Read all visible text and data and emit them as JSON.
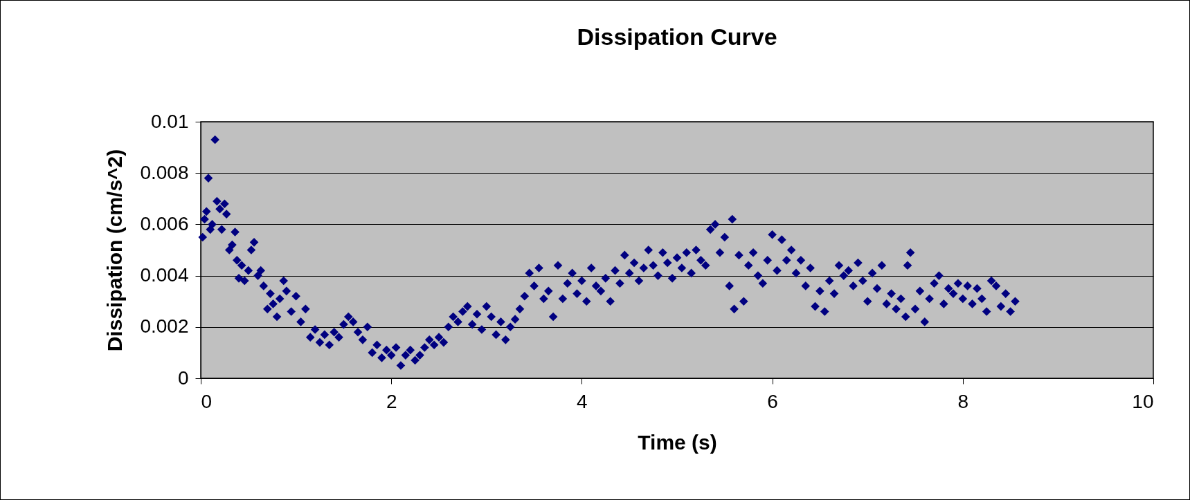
{
  "chart_data": {
    "type": "scatter",
    "title": "Dissipation Curve",
    "xlabel": "Time (s)",
    "ylabel": "Dissipation (cm/s^2)",
    "xlim": [
      0,
      10
    ],
    "xticks": [
      0,
      2,
      4,
      6,
      8,
      10
    ],
    "ylim": [
      0,
      0.01
    ],
    "yticks": [
      0,
      0.002,
      0.004,
      0.006,
      0.008,
      0.01
    ],
    "grid": "y",
    "marker": "diamond",
    "color": "#000080",
    "x": [
      0.02,
      0.04,
      0.06,
      0.08,
      0.1,
      0.12,
      0.15,
      0.17,
      0.2,
      0.22,
      0.25,
      0.27,
      0.3,
      0.33,
      0.36,
      0.38,
      0.4,
      0.43,
      0.46,
      0.5,
      0.53,
      0.56,
      0.6,
      0.63,
      0.66,
      0.7,
      0.73,
      0.76,
      0.8,
      0.83,
      0.87,
      0.9,
      0.95,
      1.0,
      1.05,
      1.1,
      1.15,
      1.2,
      1.25,
      1.3,
      1.35,
      1.4,
      1.45,
      1.5,
      1.55,
      1.6,
      1.65,
      1.7,
      1.75,
      1.8,
      1.85,
      1.9,
      1.95,
      2.0,
      2.05,
      2.1,
      2.15,
      2.2,
      2.25,
      2.3,
      2.35,
      2.4,
      2.45,
      2.5,
      2.55,
      2.6,
      2.65,
      2.7,
      2.75,
      2.8,
      2.85,
      2.9,
      2.95,
      3.0,
      3.05,
      3.1,
      3.15,
      3.2,
      3.25,
      3.3,
      3.35,
      3.4,
      3.45,
      3.5,
      3.55,
      3.6,
      3.65,
      3.7,
      3.75,
      3.8,
      3.85,
      3.9,
      3.95,
      4.0,
      4.05,
      4.1,
      4.15,
      4.2,
      4.25,
      4.3,
      4.35,
      4.4,
      4.45,
      4.5,
      4.55,
      4.6,
      4.65,
      4.7,
      4.75,
      4.8,
      4.85,
      4.9,
      4.95,
      5.0,
      5.05,
      5.1,
      5.15,
      5.2,
      5.25,
      5.3,
      5.35,
      5.4,
      5.45,
      5.5,
      5.55,
      5.58,
      5.6,
      5.65,
      5.7,
      5.75,
      5.8,
      5.85,
      5.9,
      5.95,
      6.0,
      6.05,
      6.1,
      6.15,
      6.2,
      6.25,
      6.3,
      6.35,
      6.4,
      6.45,
      6.5,
      6.55,
      6.6,
      6.65,
      6.7,
      6.75,
      6.8,
      6.85,
      6.9,
      6.95,
      7.0,
      7.05,
      7.1,
      7.15,
      7.2,
      7.25,
      7.3,
      7.35,
      7.4,
      7.42,
      7.45,
      7.5,
      7.55,
      7.6,
      7.65,
      7.7,
      7.75,
      7.8,
      7.85,
      7.9,
      7.95,
      8.0,
      8.05,
      8.1,
      8.15,
      8.2,
      8.25,
      8.3,
      8.35,
      8.4,
      8.45,
      8.5,
      8.55
    ],
    "values": [
      0.0055,
      0.0062,
      0.0065,
      0.0078,
      0.0058,
      0.006,
      0.0093,
      0.0069,
      0.0066,
      0.0058,
      0.0068,
      0.0064,
      0.005,
      0.0052,
      0.0057,
      0.0046,
      0.0039,
      0.0044,
      0.0038,
      0.0042,
      0.005,
      0.0053,
      0.004,
      0.0042,
      0.0036,
      0.0027,
      0.0033,
      0.0029,
      0.0024,
      0.0031,
      0.0038,
      0.0034,
      0.0026,
      0.0032,
      0.0022,
      0.0027,
      0.0016,
      0.0019,
      0.0014,
      0.0017,
      0.0013,
      0.0018,
      0.0016,
      0.0021,
      0.0024,
      0.0022,
      0.0018,
      0.0015,
      0.002,
      0.001,
      0.0013,
      0.0008,
      0.0011,
      0.0009,
      0.0012,
      0.0005,
      0.0009,
      0.0011,
      0.0007,
      0.0009,
      0.0012,
      0.0015,
      0.0013,
      0.0016,
      0.0014,
      0.002,
      0.0024,
      0.0022,
      0.0026,
      0.0028,
      0.0021,
      0.0025,
      0.0019,
      0.0028,
      0.0024,
      0.0017,
      0.0022,
      0.0015,
      0.002,
      0.0023,
      0.0027,
      0.0032,
      0.0041,
      0.0036,
      0.0043,
      0.0031,
      0.0034,
      0.0024,
      0.0044,
      0.0031,
      0.0037,
      0.0041,
      0.0033,
      0.0038,
      0.003,
      0.0043,
      0.0036,
      0.0034,
      0.0039,
      0.003,
      0.0042,
      0.0037,
      0.0048,
      0.0041,
      0.0045,
      0.0038,
      0.0043,
      0.005,
      0.0044,
      0.004,
      0.0049,
      0.0045,
      0.0039,
      0.0047,
      0.0043,
      0.0049,
      0.0041,
      0.005,
      0.0046,
      0.0044,
      0.0058,
      0.006,
      0.0049,
      0.0055,
      0.0036,
      0.0062,
      0.0027,
      0.0048,
      0.003,
      0.0044,
      0.0049,
      0.004,
      0.0037,
      0.0046,
      0.0056,
      0.0042,
      0.0054,
      0.0046,
      0.005,
      0.0041,
      0.0046,
      0.0036,
      0.0043,
      0.0028,
      0.0034,
      0.0026,
      0.0038,
      0.0033,
      0.0044,
      0.004,
      0.0042,
      0.0036,
      0.0045,
      0.0038,
      0.003,
      0.0041,
      0.0035,
      0.0044,
      0.0029,
      0.0033,
      0.0027,
      0.0031,
      0.0024,
      0.0044,
      0.0049,
      0.0027,
      0.0034,
      0.0022,
      0.0031,
      0.0037,
      0.004,
      0.0029,
      0.0035,
      0.0033,
      0.0037,
      0.0031,
      0.0036,
      0.0029,
      0.0035,
      0.0031,
      0.0026,
      0.0038,
      0.0036,
      0.0028,
      0.0033,
      0.0026,
      0.003
    ]
  }
}
